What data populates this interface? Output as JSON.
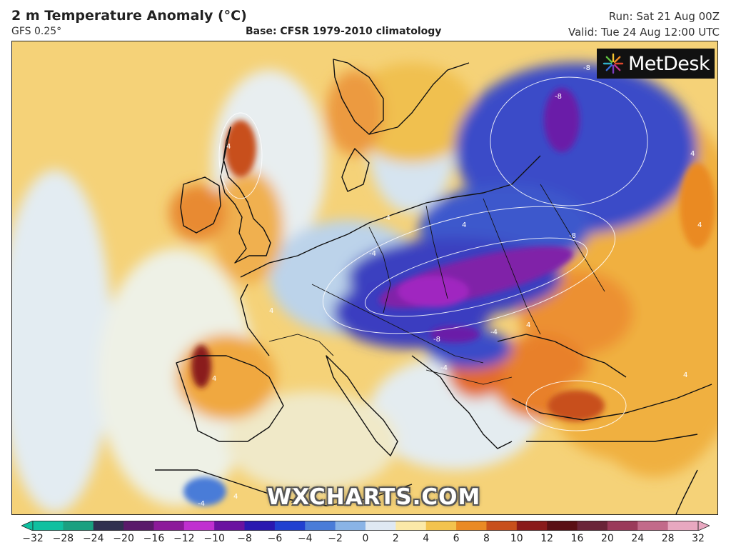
{
  "header": {
    "title": "2 m Temperature Anomaly (°C)",
    "model": "GFS 0.25°",
    "base": "Base: CFSR 1979-2010 climatology",
    "run": "Run: Sat 21 Aug 00Z",
    "valid": "Valid: Tue 24 Aug 12:00 UTC"
  },
  "branding": {
    "logo_text": "MetDesk",
    "logo_icon": "sunburst-icon",
    "watermark": "WXCHARTS.COM"
  },
  "legend": {
    "ticks": [
      "−32",
      "−28",
      "−24",
      "−20",
      "−16",
      "−12",
      "−10",
      "−8",
      "−6",
      "−4",
      "−2",
      "0",
      "2",
      "4",
      "6",
      "8",
      "10",
      "12",
      "16",
      "20",
      "24",
      "28",
      "32"
    ],
    "colors": [
      "#10c0a0",
      "#1aa080",
      "#303050",
      "#5a1a6a",
      "#8c1a9a",
      "#c030d0",
      "#6a12a0",
      "#2a18b0",
      "#2040d0",
      "#4a7cd8",
      "#8ab4e6",
      "#dfe9f3",
      "#fbe9a8",
      "#f3c34e",
      "#ea8a24",
      "#c8501c",
      "#8a1a1a",
      "#5a0f14",
      "#6a2438",
      "#9a3a5a",
      "#c26a8a",
      "#e8a8c0"
    ]
  },
  "map": {
    "contour_labels": [
      "4",
      "4",
      "-4",
      "-4",
      "-4",
      "-8",
      "-8",
      "-8",
      "-8",
      "4",
      "4",
      "4",
      "-4",
      "4",
      "4",
      "4",
      "-4",
      "4"
    ]
  }
}
